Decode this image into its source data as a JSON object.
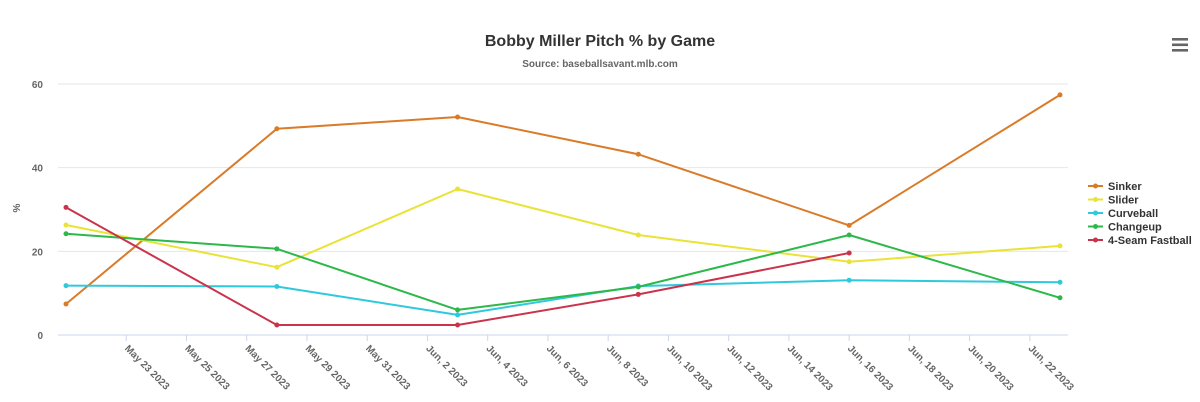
{
  "chart_data": {
    "type": "line",
    "title": "Bobby Miller Pitch % by Game",
    "subtitle": "Source: baseballsavant.mlb.com",
    "ylabel": "%",
    "ylim": [
      0,
      60
    ],
    "yticks": [
      0,
      20,
      40,
      60
    ],
    "xlim": [
      "2023-05-21",
      "2023-06-23"
    ],
    "xticks": [
      {
        "date": "2023-05-23",
        "label": "May 23 2023"
      },
      {
        "date": "2023-05-25",
        "label": "May 25 2023"
      },
      {
        "date": "2023-05-27",
        "label": "May 27 2023"
      },
      {
        "date": "2023-05-29",
        "label": "May 29 2023"
      },
      {
        "date": "2023-05-31",
        "label": "May 31 2023"
      },
      {
        "date": "2023-06-02",
        "label": "Jun, 2 2023"
      },
      {
        "date": "2023-06-04",
        "label": "Jun, 4 2023"
      },
      {
        "date": "2023-06-06",
        "label": "Jun, 6 2023"
      },
      {
        "date": "2023-06-08",
        "label": "Jun, 8 2023"
      },
      {
        "date": "2023-06-10",
        "label": "Jun, 10 2023"
      },
      {
        "date": "2023-06-12",
        "label": "Jun, 12 2023"
      },
      {
        "date": "2023-06-14",
        "label": "Jun, 14 2023"
      },
      {
        "date": "2023-06-16",
        "label": "Jun, 16 2023"
      },
      {
        "date": "2023-06-18",
        "label": "Jun, 18 2023"
      },
      {
        "date": "2023-06-20",
        "label": "Jun, 20 2023"
      },
      {
        "date": "2023-06-22",
        "label": "Jun, 22 2023"
      }
    ],
    "legend_position": "right",
    "grid": true,
    "series": [
      {
        "name": "Sinker",
        "color": "#d97b29",
        "points": [
          [
            "2023-05-21",
            7.4
          ],
          [
            "2023-05-28",
            49.3
          ],
          [
            "2023-06-03",
            52.1
          ],
          [
            "2023-06-09",
            43.2
          ],
          [
            "2023-06-16",
            26.2
          ],
          [
            "2023-06-23",
            57.4
          ]
        ]
      },
      {
        "name": "Slider",
        "color": "#e8e336",
        "points": [
          [
            "2023-05-21",
            26.3
          ],
          [
            "2023-05-28",
            16.2
          ],
          [
            "2023-06-03",
            34.9
          ],
          [
            "2023-06-09",
            23.9
          ],
          [
            "2023-06-16",
            17.5
          ],
          [
            "2023-06-23",
            21.3
          ]
        ]
      },
      {
        "name": "Curveball",
        "color": "#2ec9dd",
        "points": [
          [
            "2023-05-21",
            11.8
          ],
          [
            "2023-05-28",
            11.6
          ],
          [
            "2023-06-03",
            4.8
          ],
          [
            "2023-06-09",
            11.7
          ],
          [
            "2023-06-16",
            13.1
          ],
          [
            "2023-06-23",
            12.6
          ]
        ]
      },
      {
        "name": "Changeup",
        "color": "#2db84a",
        "points": [
          [
            "2023-05-21",
            24.2
          ],
          [
            "2023-05-28",
            20.6
          ],
          [
            "2023-06-03",
            6.0
          ],
          [
            "2023-06-09",
            11.5
          ],
          [
            "2023-06-16",
            23.9
          ],
          [
            "2023-06-23",
            8.9
          ]
        ]
      },
      {
        "name": "4-Seam Fastball",
        "color": "#c9344c",
        "points": [
          [
            "2023-05-21",
            30.5
          ],
          [
            "2023-05-28",
            2.4
          ],
          [
            "2023-06-03",
            2.4
          ],
          [
            "2023-06-09",
            9.7
          ],
          [
            "2023-06-16",
            19.6
          ]
        ]
      }
    ]
  },
  "menu": {
    "icon": "hamburger-menu-icon"
  }
}
